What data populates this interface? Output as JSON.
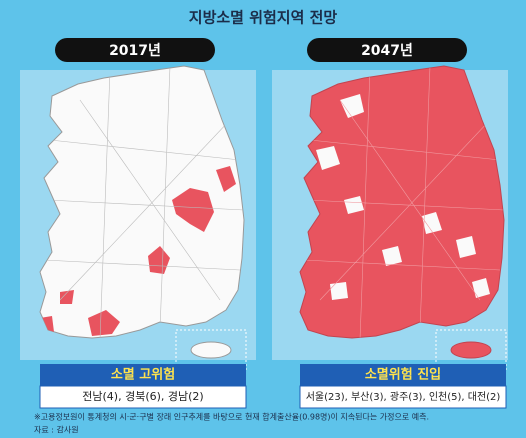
{
  "title": "지방소멸 위험지역 전망",
  "panels": [
    {
      "year": "2017년",
      "label": "소멸 고위험",
      "detail": "전남(4), 경북(6), 경남(2)"
    },
    {
      "year": "2047년",
      "label": "소멸위험 진입",
      "detail": "서울(23), 부산(3), 광주(3), 인천(5), 대전(2)"
    }
  ],
  "footnote": "※고용정보원이 통계청의 시·군·구별 장래 인구추계를 바탕으로 현재 합계출산율(0.98명)이 지속된다는 가정으로 예측.",
  "source": "자료 : 감사원"
}
